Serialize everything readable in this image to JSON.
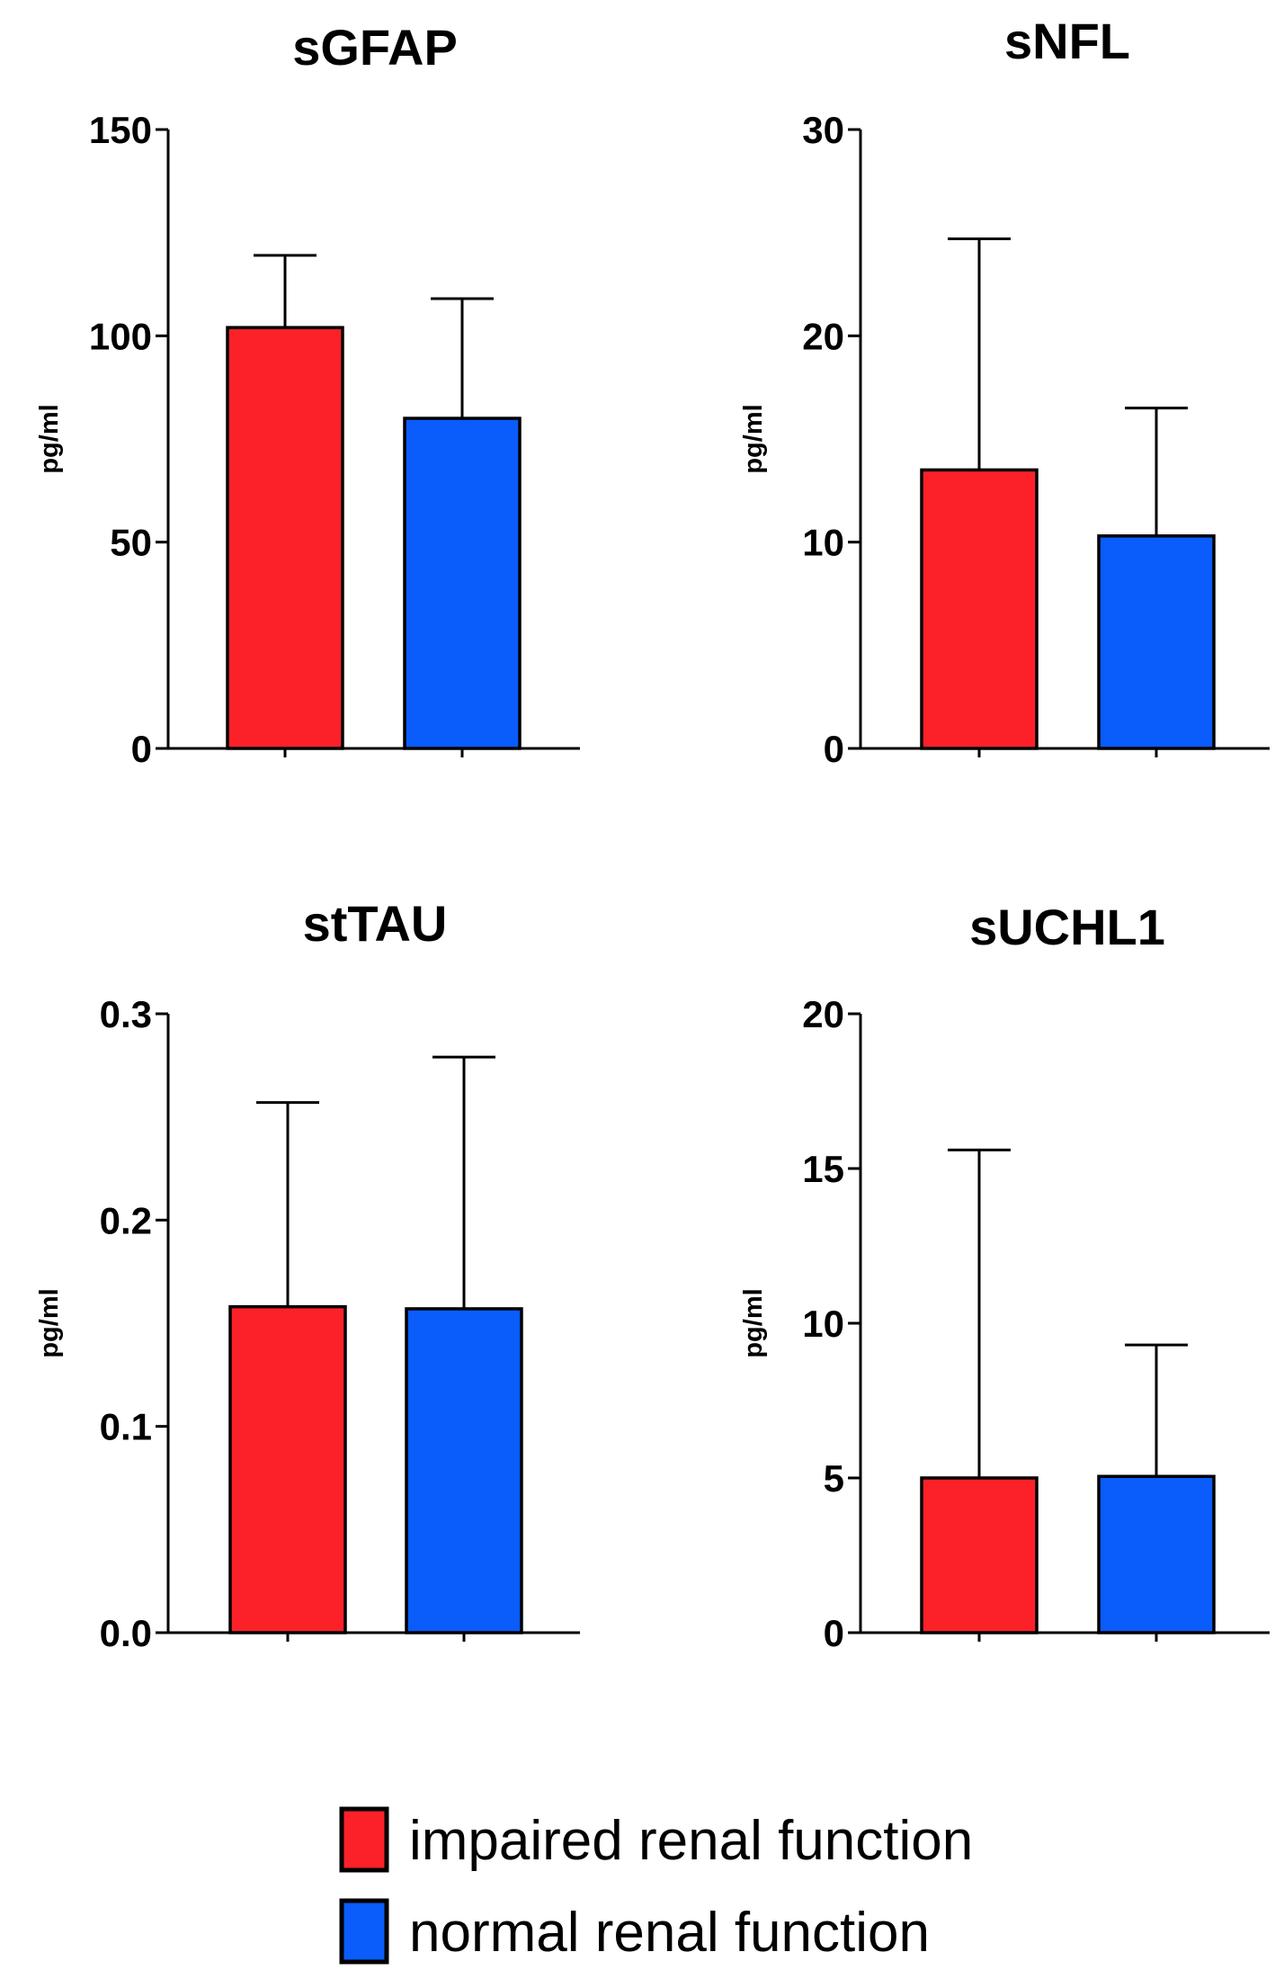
{
  "chart_data": [
    {
      "type": "bar",
      "title": "sGFAP",
      "ylabel": "pg/ml",
      "xlabel": "",
      "ylim": [
        0,
        150
      ],
      "yticks": [
        "0",
        "50",
        "100",
        "150"
      ],
      "ytick_values": [
        0,
        50,
        100,
        150
      ],
      "categories": [
        "impaired renal function",
        "normal renal function"
      ],
      "values": [
        102,
        80
      ],
      "error_upper": [
        119.5,
        109
      ],
      "grid": false
    },
    {
      "type": "bar",
      "title": "sNFL",
      "ylabel": "pg/ml",
      "xlabel": "",
      "ylim": [
        0,
        30
      ],
      "yticks": [
        "0",
        "10",
        "20",
        "30"
      ],
      "ytick_values": [
        0,
        10,
        20,
        30
      ],
      "categories": [
        "impaired renal function",
        "normal renal function"
      ],
      "values": [
        13.5,
        10.3
      ],
      "error_upper": [
        24.7,
        16.5
      ],
      "grid": false
    },
    {
      "type": "bar",
      "title": "stTAU",
      "ylabel": "pg/ml",
      "xlabel": "",
      "ylim": [
        0,
        0.3
      ],
      "yticks": [
        "0.0",
        "0.1",
        "0.2",
        "0.3"
      ],
      "ytick_values": [
        0,
        0.1,
        0.2,
        0.3
      ],
      "categories": [
        "impaired renal function",
        "normal renal function"
      ],
      "values": [
        0.158,
        0.157
      ],
      "error_upper": [
        0.257,
        0.279
      ],
      "grid": false
    },
    {
      "type": "bar",
      "title": "sUCHL1",
      "ylabel": "pg/ml",
      "xlabel": "",
      "ylim": [
        0,
        20
      ],
      "yticks": [
        "0",
        "5",
        "10",
        "15",
        "20"
      ],
      "ytick_values": [
        0,
        5,
        10,
        15,
        20
      ],
      "categories": [
        "impaired renal function",
        "normal renal function"
      ],
      "values": [
        5.0,
        5.05
      ],
      "error_upper": [
        15.6,
        9.3
      ],
      "grid": false
    }
  ],
  "legend": {
    "placement": "bottom-center",
    "items": [
      {
        "label": "impaired renal function",
        "color": "#fc2128"
      },
      {
        "label": "normal renal function",
        "color": "#0a5cfb"
      }
    ]
  },
  "colors": {
    "impaired": "#fc2128",
    "normal": "#0a5cfb",
    "axis": "#000000"
  }
}
